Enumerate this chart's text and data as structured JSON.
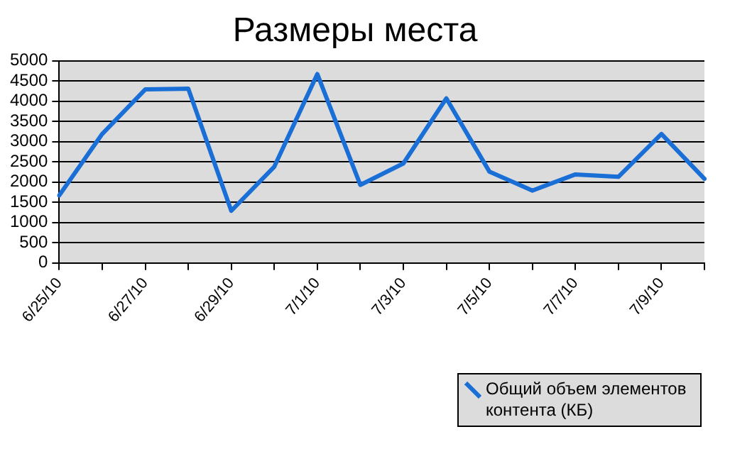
{
  "chart_data": {
    "type": "line",
    "title": "Размеры места",
    "categories": [
      "6/25/10",
      null,
      "6/27/10",
      null,
      "6/29/10",
      null,
      "7/1/10",
      null,
      "7/3/10",
      null,
      "7/5/10",
      null,
      "7/7/10",
      null,
      "7/9/10",
      null
    ],
    "series": [
      {
        "name": "Общий объем элементов контента (КБ)",
        "color": "#1a6fd6",
        "values": [
          1670,
          3190,
          4290,
          4310,
          1290,
          2380,
          4670,
          1930,
          2460,
          4070,
          2260,
          1790,
          2190,
          2130,
          3190,
          2080
        ]
      }
    ],
    "ylim": [
      0,
      5000
    ],
    "yticks": [
      0,
      500,
      1000,
      1500,
      2000,
      2500,
      3000,
      3500,
      4000,
      4500,
      5000
    ],
    "grid": "y",
    "legend": "bottom right",
    "marker": "none",
    "line_style": "solid"
  }
}
